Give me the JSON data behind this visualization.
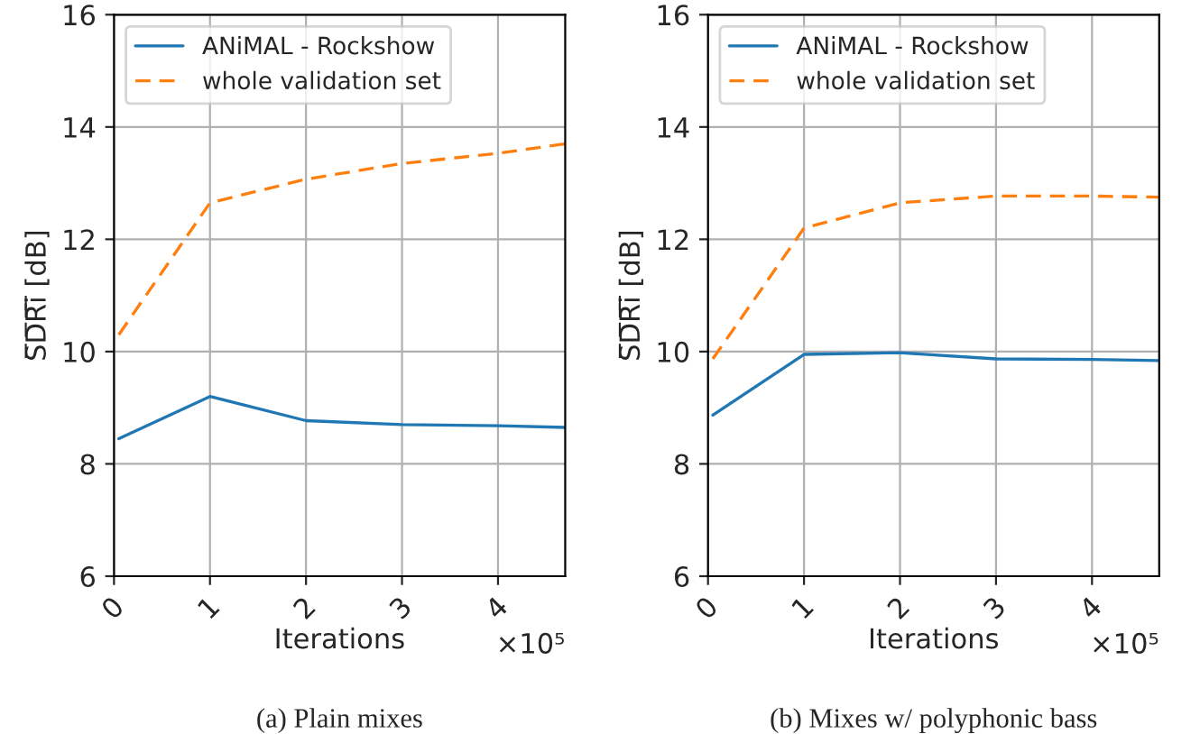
{
  "chart_data": [
    {
      "type": "line",
      "xlabel": "Iterations",
      "ylabel": "S̅D̅R̅i̅ [dB]",
      "x": [
        0.05,
        1,
        2,
        3,
        4,
        4.7
      ],
      "series": [
        {
          "name": "ANiMAL - Rockshow",
          "color": "#1f77b4",
          "line_style": "solid",
          "values": [
            8.45,
            9.2,
            8.77,
            8.7,
            8.68,
            8.65
          ]
        },
        {
          "name": "whole validation set",
          "color": "#ff7f0e",
          "line_style": "dashed",
          "values": [
            10.3,
            12.65,
            13.07,
            13.35,
            13.53,
            13.7
          ]
        }
      ],
      "xlim": [
        0,
        4.7
      ],
      "xticks": [
        0,
        1,
        2,
        3,
        4
      ],
      "ylim": [
        6,
        16
      ],
      "yticks": [
        6,
        8,
        10,
        12,
        14,
        16
      ],
      "grid": true,
      "legend": "top left",
      "marker": "none",
      "annotations": [
        "×10⁵",
        "(a) Plain mixes"
      ]
    },
    {
      "type": "line",
      "xlabel": "Iterations",
      "ylabel": "S̅D̅R̅i̅ [dB]",
      "x": [
        0.05,
        1,
        2,
        3,
        4,
        4.7
      ],
      "series": [
        {
          "name": "ANiMAL - Rockshow",
          "color": "#1f77b4",
          "line_style": "solid",
          "values": [
            8.87,
            9.95,
            9.98,
            9.87,
            9.86,
            9.84
          ]
        },
        {
          "name": "whole validation set",
          "color": "#ff7f0e",
          "line_style": "dashed",
          "values": [
            9.87,
            12.2,
            12.65,
            12.77,
            12.77,
            12.75
          ]
        }
      ],
      "xlim": [
        0,
        4.7
      ],
      "xticks": [
        0,
        1,
        2,
        3,
        4
      ],
      "ylim": [
        6,
        16
      ],
      "yticks": [
        6,
        8,
        10,
        12,
        14,
        16
      ],
      "grid": true,
      "legend": "top left",
      "marker": "none",
      "annotations": [
        "×10⁵",
        "(b) Mixes w/ polyphonic bass"
      ]
    }
  ]
}
